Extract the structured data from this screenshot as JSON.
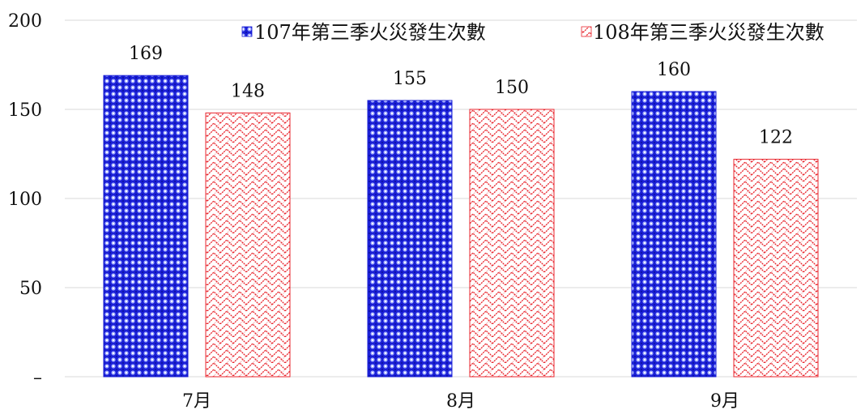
{
  "colors": {
    "series_107": "#1a1fd6",
    "series_108": "#e8262e",
    "gridline": "#d9d9d9"
  },
  "chart_data": {
    "type": "bar",
    "title": "",
    "xlabel": "",
    "ylabel": "",
    "categories": [
      "7月",
      "8月",
      "9月"
    ],
    "series": [
      {
        "name": "107年第三季火災發生次數",
        "values": [
          169,
          155,
          160
        ]
      },
      {
        "name": "108年第三季火災發生次數",
        "values": [
          148,
          150,
          122
        ]
      }
    ],
    "ylim": [
      0,
      200
    ],
    "y_ticks": [
      0,
      50,
      100,
      150,
      200
    ],
    "y_tick_labels": [
      "–",
      "50",
      "100",
      "150",
      "200"
    ],
    "grid": true,
    "legend_position": "top-right",
    "data_labels": true
  }
}
